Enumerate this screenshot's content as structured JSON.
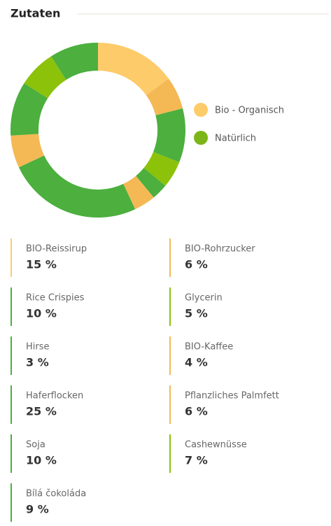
{
  "chart_data": {
    "type": "donut",
    "title": "Zutaten",
    "categories": [
      "BIO-Reissirup",
      "BIO-Rohrzucker",
      "Rice Crispies",
      "Glycerin",
      "Hirse",
      "BIO-Kaffee",
      "Haferflocken",
      "Pflanzliches Palmfett",
      "Soja",
      "Cashewnüsse",
      "Bílá čokoláda"
    ],
    "values": [
      15,
      6,
      10,
      5,
      3,
      4,
      25,
      6,
      10,
      7,
      9
    ],
    "value_labels": [
      "15 %",
      "6 %",
      "10 %",
      "5 %",
      "3 %",
      "4 %",
      "25 %",
      "6 %",
      "10 %",
      "7 %",
      "9 %"
    ],
    "colors": [
      "#fecb6a",
      "#f4b955",
      "#4caf3e",
      "#8cc20a",
      "#4caf3e",
      "#f4b955",
      "#4caf3e",
      "#f4b955",
      "#4caf3e",
      "#8cc20a",
      "#4caf3e"
    ],
    "legend": [
      {
        "name": "Bio - Organisch",
        "color": "#fecb6a"
      },
      {
        "name": "Natürlich",
        "color": "#7cb518"
      }
    ]
  }
}
